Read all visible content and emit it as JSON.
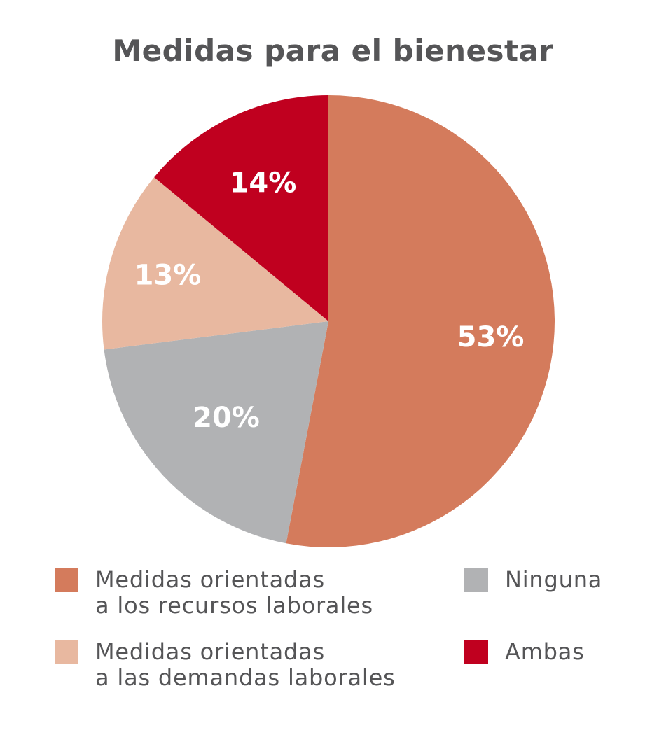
{
  "chart_data": {
    "type": "pie",
    "title": "Medidas para el bienestar",
    "start": "top",
    "direction": "clockwise",
    "slices": [
      {
        "label": "Medidas orientadas\na los recursos laborales",
        "value": 53,
        "display": "53%",
        "color": "#D47B5C"
      },
      {
        "label": "Ninguna",
        "value": 20,
        "display": "20%",
        "color": "#B1B2B4"
      },
      {
        "label": "Medidas orientadas\na las demandas laborales",
        "value": 13,
        "display": "13%",
        "color": "#E8B8A0"
      },
      {
        "label": "Ambas",
        "value": 14,
        "display": "14%",
        "color": "#C0001F"
      }
    ],
    "legend": "bottom"
  }
}
